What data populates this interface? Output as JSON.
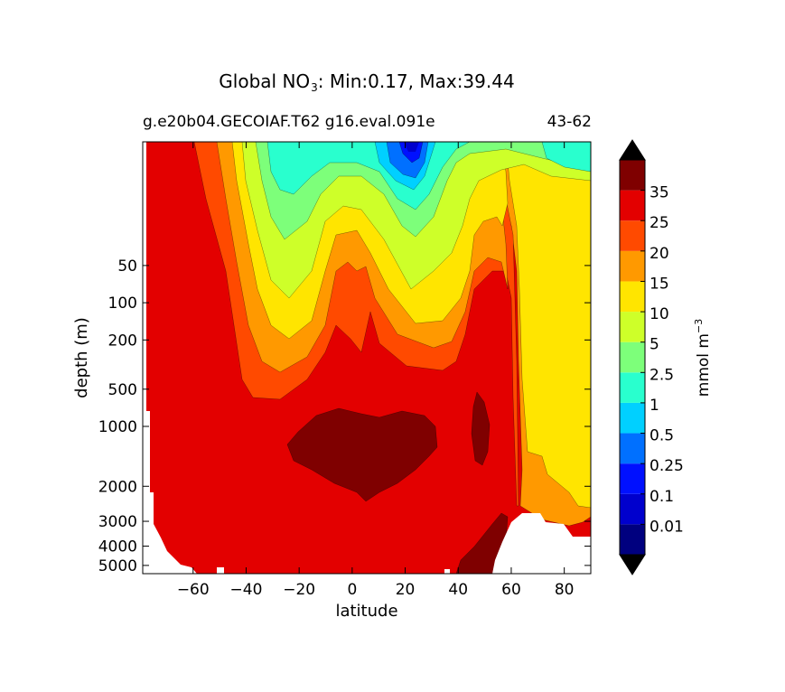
{
  "chart_data": {
    "type": "contour",
    "title_prefix": "Global NO",
    "title_subscript": "3",
    "title_suffix": ": Min:0.17, Max:39.44",
    "subtitle_left": "g.e20b04.GECOIAF.T62 g16.eval.091e",
    "subtitle_right": "43-62",
    "xlabel": "latitude",
    "ylabel": "depth (m)",
    "x_ticks": [
      -60,
      -40,
      -20,
      0,
      20,
      40,
      60,
      80
    ],
    "x_tick_labels": [
      "−60",
      "−40",
      "−20",
      "0",
      "20",
      "40",
      "60",
      "80"
    ],
    "xlim": [
      -79,
      90
    ],
    "y_ticks": [
      50,
      100,
      200,
      500,
      1000,
      2000,
      3000,
      4000,
      5000
    ],
    "y_tick_labels": [
      "50",
      "100",
      "200",
      "500",
      "1000",
      "2000",
      "3000",
      "4000",
      "5000"
    ],
    "y_axis": "depth, increasing downward (piecewise log scale: 0-1000 m and 1000-5500 m)",
    "ylim": [
      5500,
      5
    ],
    "levels": [
      0.01,
      0.1,
      0.25,
      0.5,
      1,
      2.5,
      5,
      10,
      15,
      20,
      25,
      35
    ],
    "colorbar_label": "mmol m^-3",
    "colorbar_colors": [
      "#00007f",
      "#0000cd",
      "#0010ff",
      "#0070ff",
      "#00d0ff",
      "#29ffce",
      "#7dff7a",
      "#ceff29",
      "#ffe500",
      "#ff9900",
      "#ff4a00",
      "#e30000",
      "#7f0000"
    ],
    "colorbar_tick_labels": [
      "0.01",
      "0.1",
      "0.25",
      "0.5",
      "1",
      "2.5",
      "5",
      "10",
      "15",
      "20",
      "25",
      "35"
    ],
    "colorbar_extend": "both",
    "regions": [
      {
        "level": "25-35",
        "description": "Southern Ocean and deep ocean below ~500 m; fills most of basin"
      },
      {
        "level": ">35",
        "description": "deep maximum ~-30 to 30 latitude, ~700-2700 m; North Pacific core ~45-50 at 800-1800 m; bottom water 45-60 below 3500 m"
      },
      {
        "level": "20-25",
        "description": "intermediate waters ~-50 to 60 latitude, ~150-800 m"
      },
      {
        "level": "10-20",
        "description": "thermocline, ~-70 to 50 latitude, upper 300 m; Arctic/North Atlantic deep water 60-90"
      },
      {
        "level": "0.25-2.5",
        "description": "subtropical surface minimum ~-20 and ~20 latitude, upper 100 m"
      },
      {
        "level": "0.01-0.25",
        "description": "surface minimum near 20 latitude, upper ~50 m"
      }
    ],
    "missing_data": "white areas: Antarctic continent below ~1000 m south of -77, Arctic shelf north of 60 below ~3000 m, bathymetry steps at bottom"
  }
}
